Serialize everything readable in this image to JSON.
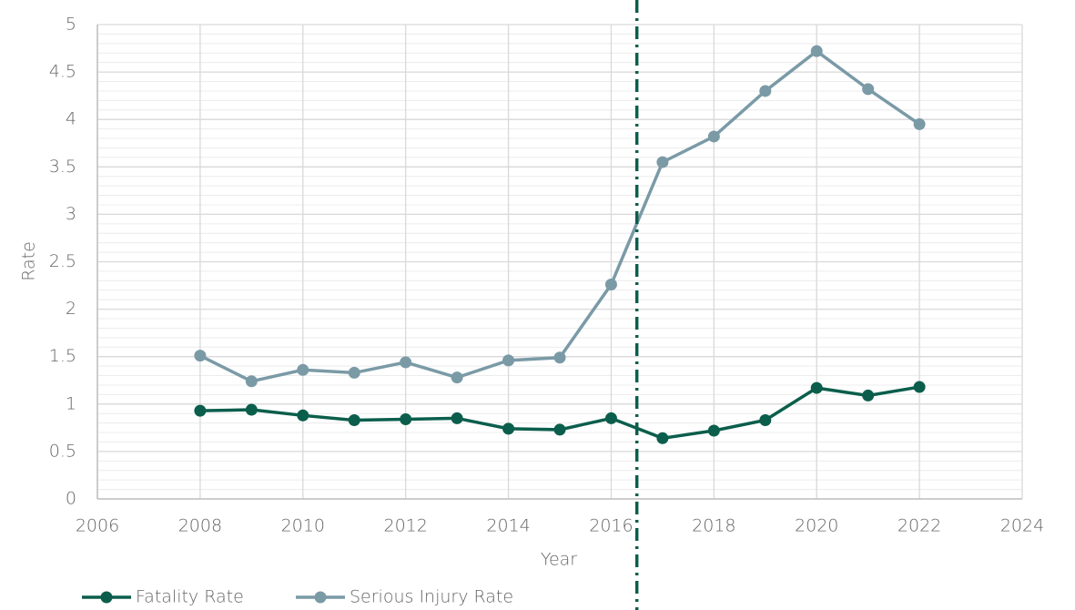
{
  "chart_data": {
    "type": "line",
    "x_label": "Year",
    "y_label": "Rate",
    "x": [
      2008,
      2009,
      2010,
      2011,
      2012,
      2013,
      2014,
      2015,
      2016,
      2017,
      2018,
      2019,
      2020,
      2021,
      2022
    ],
    "series": [
      {
        "name": "Fatality Rate",
        "color": "#0b5e4c",
        "values": [
          0.93,
          0.94,
          0.88,
          0.83,
          0.84,
          0.85,
          0.74,
          0.73,
          0.85,
          0.64,
          0.72,
          0.83,
          1.17,
          1.09,
          1.18
        ]
      },
      {
        "name": "Serious Injury Rate",
        "color": "#7a9aa6",
        "values": [
          1.51,
          1.24,
          1.36,
          1.33,
          1.44,
          1.28,
          1.46,
          1.49,
          2.26,
          3.55,
          3.82,
          4.3,
          4.72,
          4.32,
          3.95
        ]
      }
    ],
    "xlim": [
      2006,
      2024
    ],
    "xticks": [
      2006,
      2008,
      2010,
      2012,
      2014,
      2016,
      2018,
      2020,
      2022,
      2024
    ],
    "ylim": [
      0,
      5
    ],
    "yticks": [
      0,
      0.5,
      1,
      1.5,
      2,
      2.5,
      3,
      3.5,
      4,
      4.5,
      5
    ],
    "grid": true,
    "minor_grid_step": 0.1,
    "reference_line": {
      "x": 2016.5,
      "color": "#0b5e4c"
    },
    "legend": "bottom-left"
  }
}
